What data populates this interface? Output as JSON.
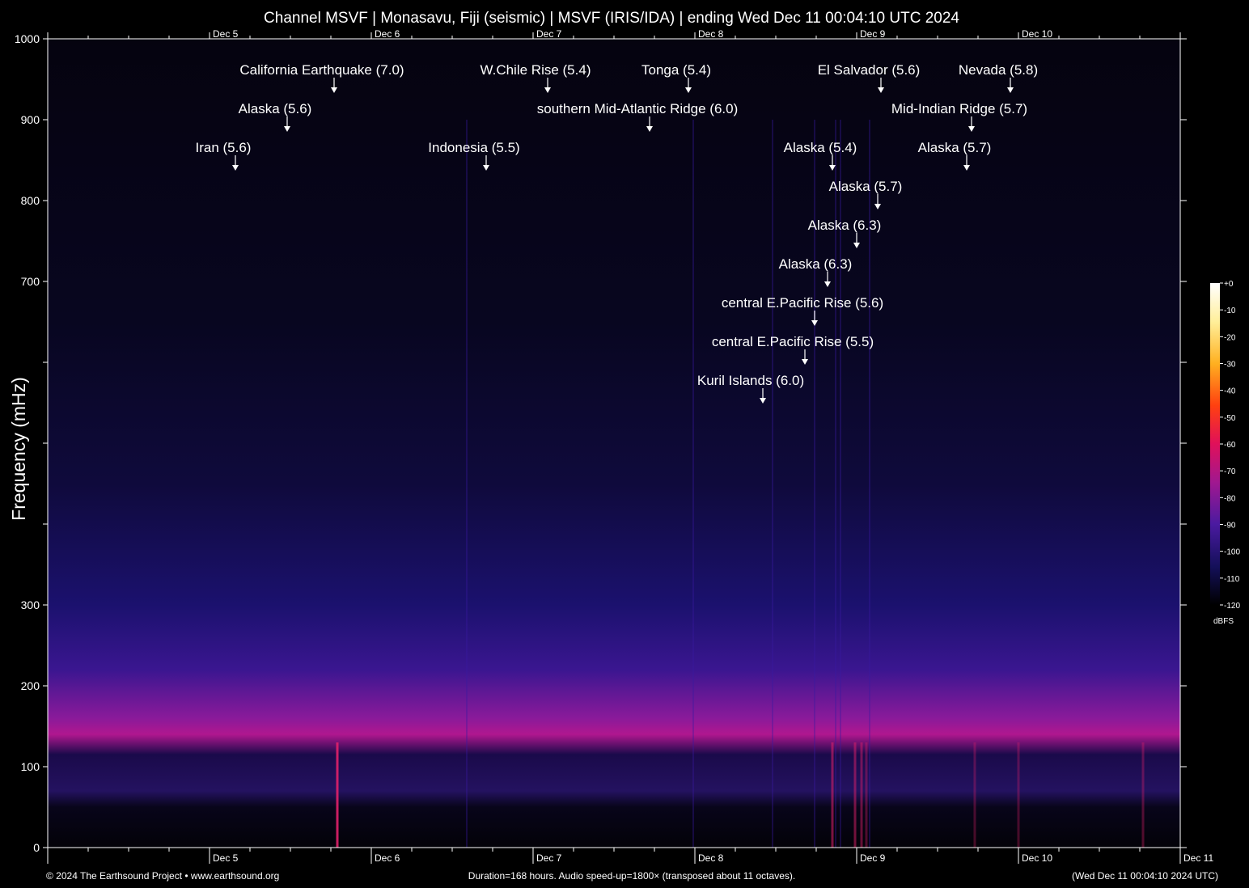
{
  "chart_data": {
    "type": "heatmap",
    "title": "Channel MSVF | Monasavu, Fiji (seismic) | MSVF (IRIS/IDA) | ending Wed Dec 11 00:04:10 UTC 2024",
    "ylabel": "Frequency (mHz)",
    "ylim": [
      0,
      1000
    ],
    "y_ticks": [
      0,
      100,
      200,
      300,
      400,
      500,
      600,
      700,
      800,
      900,
      1000
    ],
    "y_tick_labels": [
      "0",
      "100",
      "200",
      "300",
      "",
      "",
      "",
      "700",
      "800",
      "900",
      "1000"
    ],
    "x_range_days": [
      0,
      7
    ],
    "x_date_labels": [
      {
        "label": "Dec 5",
        "day": 1
      },
      {
        "label": "Dec 6",
        "day": 2
      },
      {
        "label": "Dec 7",
        "day": 3
      },
      {
        "label": "Dec 8",
        "day": 4
      },
      {
        "label": "Dec 9",
        "day": 5
      },
      {
        "label": "Dec 10",
        "day": 6
      },
      {
        "label": "Dec 11",
        "day": 7
      }
    ],
    "colorbar": {
      "unit": "dBFS",
      "range": [
        -120,
        0
      ],
      "ticks": [
        "+0",
        "-10",
        "-20",
        "-30",
        "-40",
        "-50",
        "-60",
        "-70",
        "-80",
        "-90",
        "-100",
        "-110",
        "-120"
      ]
    },
    "annotations": [
      {
        "text": "California Earthquake (7.0)",
        "day": 1.77,
        "row": 0
      },
      {
        "text": "W.Chile Rise (5.4)",
        "day": 3.09,
        "row": 0
      },
      {
        "text": "Tonga (5.4)",
        "day": 3.96,
        "row": 0
      },
      {
        "text": "El Salvador (5.6)",
        "day": 5.15,
        "row": 0
      },
      {
        "text": "Nevada (5.8)",
        "day": 5.95,
        "row": 0
      },
      {
        "text": "Alaska (5.6)",
        "day": 1.48,
        "row": 1
      },
      {
        "text": "southern Mid-Atlantic Ridge (6.0)",
        "day": 3.72,
        "row": 1
      },
      {
        "text": "Mid-Indian Ridge (5.7)",
        "day": 5.71,
        "row": 1
      },
      {
        "text": "Iran (5.6)",
        "day": 1.16,
        "row": 2
      },
      {
        "text": "Indonesia (5.5)",
        "day": 2.71,
        "row": 2
      },
      {
        "text": "Alaska (5.4)",
        "day": 4.85,
        "row": 2
      },
      {
        "text": "Alaska (5.7)",
        "day": 5.68,
        "row": 2
      },
      {
        "text": "Alaska (5.7)",
        "day": 5.13,
        "row": 3
      },
      {
        "text": "Alaska (6.3)",
        "day": 5.0,
        "row": 4
      },
      {
        "text": "Alaska (6.3)",
        "day": 4.82,
        "row": 5
      },
      {
        "text": "central E.Pacific Rise (5.6)",
        "day": 4.74,
        "row": 6
      },
      {
        "text": "central E.Pacific Rise (5.5)",
        "day": 4.68,
        "row": 7
      },
      {
        "text": "Kuril Islands (6.0)",
        "day": 4.42,
        "row": 8
      }
    ]
  },
  "footer": {
    "left": "© 2024 The Earthsound Project • www.earthsound.org",
    "center": "Duration=168 hours. Audio speed-up=1800× (transposed about 11 octaves).",
    "right": "(Wed Dec 11 00:04:10 2024 UTC)"
  },
  "colors": {
    "background": "#000000",
    "noise_band": "#c0188f",
    "upper_haze": "#1c0f6a",
    "event_streak": "#e0206a",
    "axis": "#ffffff"
  }
}
